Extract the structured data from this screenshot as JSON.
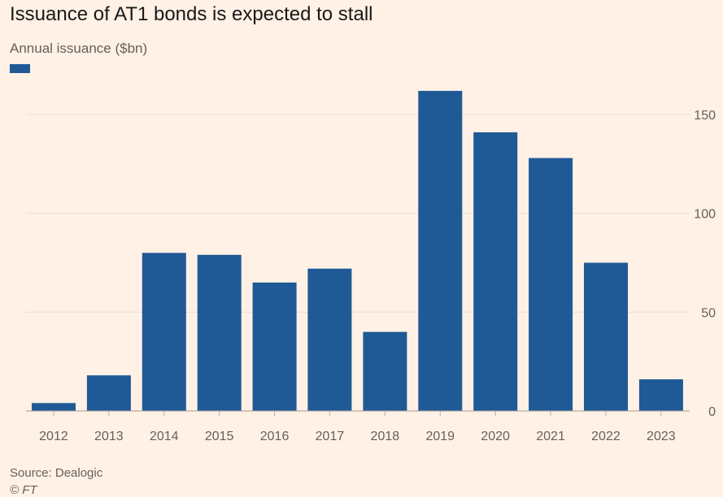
{
  "chart_data": {
    "type": "bar",
    "title": "Issuance of AT1 bonds is expected to stall",
    "subtitle": "Annual issuance ($bn)",
    "legend": [
      {
        "name": "",
        "color": "#1f5a96"
      }
    ],
    "categories": [
      "2012",
      "2013",
      "2014",
      "2015",
      "2016",
      "2017",
      "2018",
      "2019",
      "2020",
      "2021",
      "2022",
      "2023"
    ],
    "series": [
      {
        "name": "Annual issuance",
        "color": "#1f5a96",
        "values": [
          4,
          18,
          80,
          79,
          65,
          72,
          40,
          162,
          141,
          128,
          75,
          16
        ]
      }
    ],
    "xlabel": "",
    "ylabel": "",
    "ylim": [
      0,
      165
    ],
    "yticks": [
      0,
      50,
      100,
      150
    ],
    "grid": true,
    "y_axis_side": "right",
    "source": "Source: Dealogic",
    "credit": "© FT"
  }
}
